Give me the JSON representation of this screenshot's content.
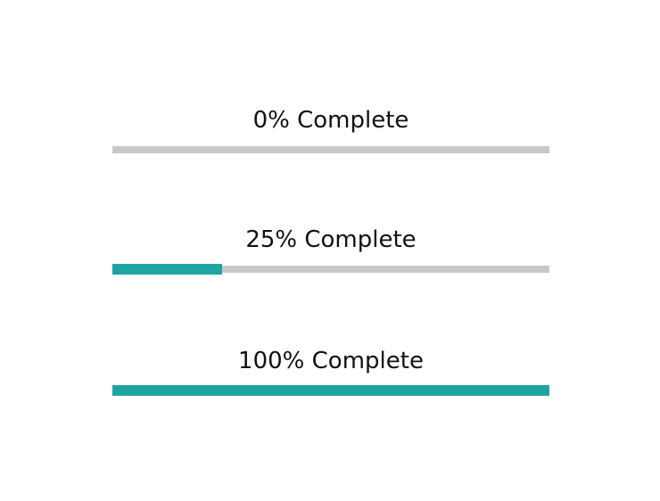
{
  "colors": {
    "fill": "#1fa5a1",
    "track": "#c8c8c8",
    "text": "#111111",
    "background": "#ffffff"
  },
  "progress_bars": [
    {
      "label": "0% Complete",
      "value": 0
    },
    {
      "label": "25% Complete",
      "value": 0.25
    },
    {
      "label": "100% Complete",
      "value": 1.0
    }
  ]
}
